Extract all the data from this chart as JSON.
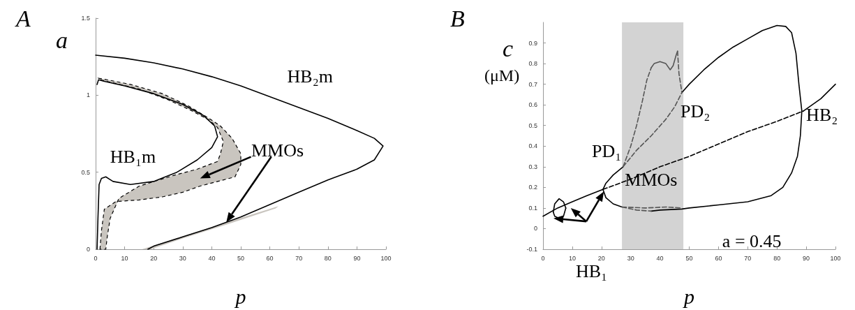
{
  "chart_data": [
    {
      "type": "line",
      "title": "A",
      "xlabel": "p",
      "ylabel": "a",
      "xlim": [
        0,
        100
      ],
      "xticks": [
        0,
        10,
        20,
        30,
        40,
        50,
        60,
        70,
        80,
        90,
        100
      ],
      "ylim": [
        0,
        1.5
      ],
      "yticks": [
        0,
        0.5,
        1,
        1.5
      ],
      "annotations": [
        "HB₂m",
        "HB₁m",
        "MMOs"
      ],
      "series": [
        {
          "type": "area",
          "color": "#c9c5bf",
          "line_style": "dashed",
          "x": [
            1.5,
            2,
            3,
            7,
            15,
            23,
            30,
            36,
            42,
            48,
            50,
            50,
            47,
            43,
            39,
            32,
            23,
            12,
            4,
            1,
            1.5,
            6,
            15,
            25,
            33,
            39,
            42,
            44,
            43,
            42,
            35,
            27,
            15,
            8,
            5,
            4,
            3.5
          ],
          "values": [
            0,
            0.12,
            0.26,
            0.31,
            0.32,
            0.34,
            0.37,
            0.41,
            0.44,
            0.47,
            0.55,
            0.62,
            0.72,
            0.8,
            0.85,
            0.93,
            1.01,
            1.07,
            1.1,
            1.11,
            1.1,
            1.08,
            1.04,
            0.97,
            0.9,
            0.84,
            0.79,
            0.7,
            0.62,
            0.57,
            0.52,
            0.48,
            0.41,
            0.33,
            0.2,
            0.08,
            0
          ]
        },
        {
          "type": "area",
          "color": "#c9c5bf",
          "line_style": "solid",
          "x": [
            16,
            30,
            45,
            63,
            62,
            45,
            30,
            19
          ],
          "values": [
            0,
            0.085,
            0.175,
            0.28,
            0.265,
            0.16,
            0.07,
            0
          ]
        },
        {
          "color": "#000000",
          "line_style": "solid",
          "x": [
            0,
            10,
            20,
            30,
            40,
            50,
            60,
            70,
            80,
            90,
            96,
            99,
            96,
            90,
            80,
            70,
            60,
            50,
            40,
            30,
            20,
            18
          ],
          "values": [
            1.26,
            1.24,
            1.21,
            1.17,
            1.12,
            1.06,
            0.99,
            0.92,
            0.85,
            0.77,
            0.72,
            0.67,
            0.58,
            0.52,
            0.45,
            0.37,
            0.29,
            0.21,
            0.14,
            0.08,
            0.02,
            0
          ]
        },
        {
          "color": "#000000",
          "line_style": "solid",
          "x": [
            0.5,
            0.8,
            1.2,
            2,
            3.5,
            6,
            12,
            20,
            28,
            35,
            40,
            42,
            41,
            37,
            30,
            20,
            10,
            3,
            1,
            0.5
          ],
          "values": [
            0,
            0.2,
            0.42,
            0.46,
            0.47,
            0.44,
            0.42,
            0.44,
            0.5,
            0.58,
            0.66,
            0.73,
            0.8,
            0.87,
            0.94,
            1.01,
            1.06,
            1.09,
            1.1,
            1.07
          ]
        }
      ]
    },
    {
      "type": "line",
      "title": "B",
      "xlabel": "p",
      "ylabel": "c (μM)",
      "xlim": [
        0,
        100
      ],
      "xticks": [
        0,
        10,
        20,
        30,
        40,
        50,
        60,
        70,
        80,
        90,
        100
      ],
      "ylim": [
        -0.1,
        1.0
      ],
      "yticks": [
        -0.1,
        0,
        0.1,
        0.2,
        0.3,
        0.4,
        0.5,
        0.6,
        0.7,
        0.8,
        0.9
      ],
      "bands": [
        {
          "axis": "x",
          "from": 27,
          "to": 48,
          "color": "#d3d3d3"
        }
      ],
      "annotations": [
        "PD₁",
        "PD₂",
        "HB₂",
        "MMOs",
        "HB₁",
        "a = 0.45"
      ],
      "series": [
        {
          "color": "#000000",
          "line_style": "solid",
          "x": [
            0,
            5,
            10,
            15,
            20.5
          ],
          "values": [
            0.06,
            0.1,
            0.13,
            0.16,
            0.19
          ]
        },
        {
          "color": "#000000",
          "line_style": "dashed",
          "x": [
            20.5,
            30,
            40,
            50,
            60,
            70,
            80,
            89
          ],
          "values": [
            0.19,
            0.24,
            0.3,
            0.35,
            0.41,
            0.47,
            0.52,
            0.57
          ]
        },
        {
          "color": "#000000",
          "line_style": "solid",
          "x": [
            89,
            95,
            100
          ],
          "values": [
            0.57,
            0.63,
            0.7
          ]
        },
        {
          "color": "#000000",
          "line_style": "solid",
          "x": [
            3.5,
            4,
            5.5,
            7,
            7.8
          ],
          "values": [
            0.08,
            0.12,
            0.145,
            0.13,
            0.1
          ]
        },
        {
          "color": "#000000",
          "line_style": "solid",
          "x": [
            3.5,
            4,
            5.5,
            7,
            7.8
          ],
          "values": [
            0.08,
            0.06,
            0.05,
            0.06,
            0.1
          ]
        },
        {
          "color": "#000000",
          "line_style": "solid",
          "x": [
            20.5,
            21.5,
            24,
            27.4
          ],
          "values": [
            0.19,
            0.22,
            0.26,
            0.3
          ]
        },
        {
          "color": "#000000",
          "line_style": "solid",
          "x": [
            20.5,
            21.5,
            24,
            27
          ],
          "values": [
            0.19,
            0.15,
            0.12,
            0.105
          ]
        },
        {
          "color": "#000000",
          "line_style": "solid",
          "x": [
            37,
            40,
            47.5,
            50,
            60,
            70,
            78,
            82,
            85,
            87,
            88,
            88.5,
            87.5,
            86.5,
            85,
            83,
            80,
            75,
            70,
            65,
            60,
            55,
            50,
            47.5
          ],
          "values": [
            0.085,
            0.09,
            0.095,
            0.1,
            0.115,
            0.13,
            0.16,
            0.2,
            0.27,
            0.35,
            0.45,
            0.57,
            0.7,
            0.85,
            0.95,
            0.98,
            0.985,
            0.96,
            0.92,
            0.88,
            0.83,
            0.77,
            0.7,
            0.66
          ]
        },
        {
          "color": "#555555",
          "line_style": "dashed",
          "x": [
            27.4,
            32,
            37,
            42,
            45,
            47.5
          ],
          "values": [
            0.3,
            0.38,
            0.45,
            0.53,
            0.59,
            0.66
          ]
        },
        {
          "color": "#555555",
          "line_style": "dashed",
          "x": [
            27.4,
            30,
            32,
            34,
            35.5,
            37
          ],
          "values": [
            0.3,
            0.4,
            0.5,
            0.62,
            0.72,
            0.78
          ]
        },
        {
          "color": "#555555",
          "line_style": "solid",
          "x": [
            37,
            38,
            40,
            42,
            43.5,
            44.5,
            45.5,
            46
          ],
          "values": [
            0.78,
            0.8,
            0.81,
            0.8,
            0.77,
            0.79,
            0.84,
            0.86
          ]
        },
        {
          "color": "#555555",
          "line_style": "dashed",
          "x": [
            46,
            46.5,
            47.5
          ],
          "values": [
            0.86,
            0.75,
            0.66
          ]
        },
        {
          "color": "#555555",
          "line_style": "dashed",
          "x": [
            27,
            35,
            42,
            47.5
          ],
          "values": [
            0.105,
            0.1,
            0.105,
            0.1
          ]
        },
        {
          "color": "#555555",
          "line_style": "dashed",
          "x": [
            27,
            32,
            37
          ],
          "values": [
            0.105,
            0.09,
            0.085
          ]
        }
      ]
    }
  ]
}
